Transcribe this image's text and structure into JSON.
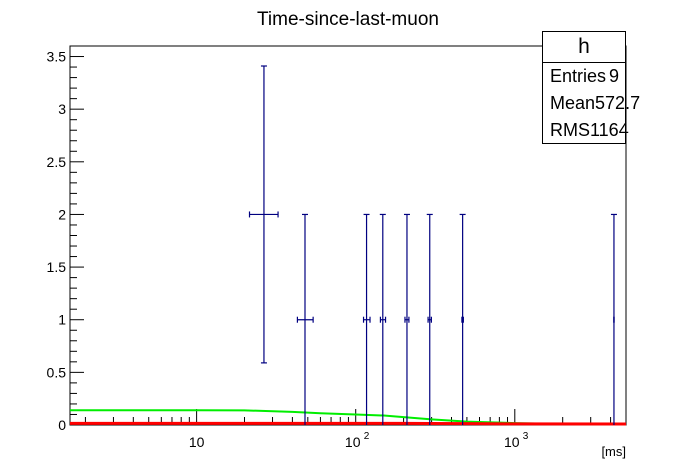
{
  "chart_data": {
    "type": "scatter",
    "title": "Time-since-last-muon",
    "xlabel": "[ms]",
    "ylabel": "",
    "xscale": "log",
    "xlim": [
      1.6,
      5000
    ],
    "ylim": [
      0,
      3.6
    ],
    "x_tick_labels": [
      {
        "value": 10,
        "base": "10",
        "exp": ""
      },
      {
        "value": 100,
        "base": "10",
        "exp": "2"
      },
      {
        "value": 1000,
        "base": "10",
        "exp": "3"
      }
    ],
    "y_ticks": [
      0,
      0.5,
      1,
      1.5,
      2,
      2.5,
      3,
      3.5
    ],
    "y_tick_labels": [
      "0",
      "0.5",
      "1",
      "1.5",
      "2",
      "2.5",
      "3",
      "3.5"
    ],
    "series": [
      {
        "points": [
          {
            "x": 26.5,
            "xlow": 21.5,
            "xhigh": 32.5,
            "y": 2,
            "ylow": 0.59,
            "yhigh": 3.41
          },
          {
            "x": 48,
            "xlow": 43,
            "xhigh": 54,
            "y": 1,
            "ylow": 0,
            "yhigh": 2
          },
          {
            "x": 117,
            "xlow": 112,
            "xhigh": 123,
            "y": 1,
            "ylow": 0,
            "yhigh": 2
          },
          {
            "x": 148,
            "xlow": 143,
            "xhigh": 154,
            "y": 1,
            "ylow": 0,
            "yhigh": 2
          },
          {
            "x": 210,
            "xlow": 204,
            "xhigh": 216,
            "y": 1,
            "ylow": 0,
            "yhigh": 2
          },
          {
            "x": 292,
            "xlow": 285,
            "xhigh": 299,
            "y": 1,
            "ylow": 0,
            "yhigh": 2
          },
          {
            "x": 470,
            "xlow": 465,
            "xhigh": 475,
            "y": 1,
            "ylow": 0,
            "yhigh": 2
          },
          {
            "x": 4200,
            "xlow": 4190,
            "xhigh": 4210,
            "y": 1,
            "ylow": 0,
            "yhigh": 2
          }
        ]
      },
      {
        "line": true,
        "x": [
          1.6,
          10,
          20,
          40,
          60,
          100,
          150,
          200,
          300,
          500,
          1000,
          2000,
          5000
        ],
        "y": [
          0.14,
          0.14,
          0.139,
          0.125,
          0.112,
          0.1,
          0.09,
          0.075,
          0.053,
          0.032,
          0.018,
          0.01,
          0.006
        ]
      },
      {
        "line": true,
        "x": [
          1.6,
          50,
          100,
          200,
          300,
          500,
          700,
          1000,
          5000
        ],
        "y": [
          0.006,
          0.006,
          0.006,
          0.006,
          0.005,
          0.004,
          0.002,
          0.001,
          0.0
        ]
      }
    ],
    "colors": {
      "data_points": "#000080",
      "green_curve": "#00ee00",
      "red_curve": "#ff0000",
      "axes": "#000000"
    },
    "grid": false
  },
  "stats": {
    "title": "h",
    "rows": [
      {
        "label": "Entries",
        "value": "9"
      },
      {
        "label": "Mean",
        "value": "572.7"
      },
      {
        "label": "RMS",
        "value": "1164"
      }
    ]
  }
}
